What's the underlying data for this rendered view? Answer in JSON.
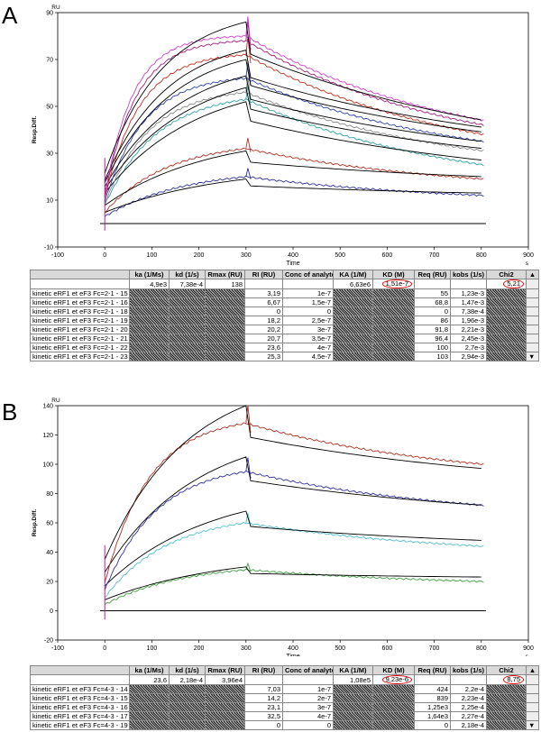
{
  "panels": [
    {
      "letter": "A",
      "chart_data": {
        "type": "line",
        "xlabel": "Time",
        "x_unit": "s",
        "ylabel": "Resp.Diff.",
        "y_unit": "RU",
        "xlim": [
          -100,
          900
        ],
        "ylim": [
          -10,
          90
        ],
        "xticks": [
          -100,
          0,
          100,
          200,
          300,
          400,
          500,
          600,
          700,
          800,
          900
        ],
        "yticks": [
          -10,
          10,
          30,
          50,
          70,
          90
        ],
        "grid": false,
        "series": [
          {
            "color": "#2e2e9e",
            "peak": 20,
            "end": 12,
            "fit_peak": 19,
            "fit_end": 13
          },
          {
            "color": "#b03020",
            "peak": 32,
            "end": 19,
            "fit_peak": 31,
            "fit_end": 20
          },
          {
            "color": "#30a0a0",
            "peak": 53,
            "end": 25,
            "fit_peak": 52,
            "fit_end": 27
          },
          {
            "color": "#888888",
            "peak": 56,
            "end": 31,
            "fit_peak": 58,
            "fit_end": 32
          },
          {
            "color": "#3040b0",
            "peak": 62,
            "end": 35,
            "fit_peak": 63,
            "fit_end": 35
          },
          {
            "color": "#c03020",
            "peak": 72,
            "end": 38,
            "fit_peak": 70,
            "fit_end": 39
          },
          {
            "color": "#a02080",
            "peak": 78,
            "end": 42,
            "fit_peak": 74,
            "fit_end": 41
          },
          {
            "color": "#d040d0",
            "peak": 80,
            "end": 44,
            "fit_peak": 86,
            "fit_end": 44
          }
        ]
      },
      "table": {
        "headers": [
          "",
          "ka (1/Ms)",
          "kd (1/s)",
          "Rmax (RU)",
          "RI (RU)",
          "Conc of analyte",
          "KA (1/M)",
          "KD (M)",
          "Req (RU)",
          "kobs (1/s)",
          "Chi2"
        ],
        "global": {
          "ka": "4,9e3",
          "kd": "7,38e-4",
          "rmax": "138",
          "ka_m": "6,63e6",
          "kd_m": "1,51e-7",
          "chi2": "5,21"
        },
        "rows": [
          {
            "name": "kinetic  eRF1 et eF3 Fc=2-1 - 15",
            "ri": "3,19",
            "conc": "1e-7",
            "req": "55",
            "kobs": "1,23e-3"
          },
          {
            "name": "kinetic  eRF1 et eF3 Fc=2-1 - 16",
            "ri": "6,67",
            "conc": "1,5e-7",
            "req": "68,8",
            "kobs": "1,47e-3"
          },
          {
            "name": "kinetic  eRF1 et eF3 Fc=2-1 - 18",
            "ri": "0",
            "conc": "0",
            "req": "0",
            "kobs": "7,38e-4"
          },
          {
            "name": "kinetic  eRF1 et eF3 Fc=2-1 - 19",
            "ri": "18,2",
            "conc": "2,5e-7",
            "req": "86",
            "kobs": "1,96e-3"
          },
          {
            "name": "kinetic  eRF1 et eF3 Fc=2-1 - 20",
            "ri": "20,2",
            "conc": "3e-7",
            "req": "91,8",
            "kobs": "2,21e-3"
          },
          {
            "name": "kinetic  eRF1 et eF3 Fc=2-1 - 21",
            "ri": "20,7",
            "conc": "3,5e-7",
            "req": "96,4",
            "kobs": "2,45e-3"
          },
          {
            "name": "kinetic  eRF1 et eF3 Fc=2-1 - 22",
            "ri": "23,6",
            "conc": "4e-7",
            "req": "100",
            "kobs": "2,7e-3"
          },
          {
            "name": "kinetic  eRF1 et eF3 Fc=2-1 - 23",
            "ri": "25,3",
            "conc": "4,5e-7",
            "req": "103",
            "kobs": "2,94e-3"
          }
        ]
      }
    },
    {
      "letter": "B",
      "chart_data": {
        "type": "line",
        "xlabel": "Time",
        "x_unit": "s",
        "ylabel": "Resp.Diff.",
        "y_unit": "RU",
        "xlim": [
          -100,
          900
        ],
        "ylim": [
          -20,
          140
        ],
        "xticks": [
          -100,
          0,
          100,
          200,
          300,
          400,
          500,
          600,
          700,
          800,
          900
        ],
        "yticks": [
          -20,
          0,
          20,
          40,
          60,
          80,
          100,
          120,
          140
        ],
        "grid": false,
        "series": [
          {
            "color": "#40a040",
            "peak": 28,
            "end": 20,
            "fit_peak": 30,
            "fit_end": 23
          },
          {
            "color": "#50c0d0",
            "peak": 60,
            "end": 44,
            "fit_peak": 68,
            "fit_end": 48
          },
          {
            "color": "#3030a0",
            "peak": 95,
            "end": 72,
            "fit_peak": 105,
            "fit_end": 72
          },
          {
            "color": "#b03020",
            "peak": 128,
            "end": 100,
            "fit_peak": 140,
            "fit_end": 97
          }
        ]
      },
      "table": {
        "headers": [
          "",
          "ka (1/Ms)",
          "kd (1/s)",
          "Rmax  (RU)",
          "RI (RU)",
          "Conc of analyte",
          "KA (1/M)",
          "KD (M)",
          "Req  (RU)",
          "kobs (1/s)",
          "Chi2"
        ],
        "global": {
          "ka": "23,6",
          "kd": "2,18e-4",
          "rmax": "3,96e4",
          "ka_m": "1,08e5",
          "kd_m": "9,23e-6",
          "chi2": "8,75"
        },
        "rows": [
          {
            "name": "kinetic  eRF1 et eF3 Fc=4-3 - 14",
            "ri": "7,03",
            "conc": "1e-7",
            "req": "424",
            "kobs": "2,2e-4"
          },
          {
            "name": "kinetic  eRF1 et eF3 Fc=4-3 - 15",
            "ri": "14,2",
            "conc": "2e-7",
            "req": "839",
            "kobs": "2,23e-4"
          },
          {
            "name": "kinetic  eRF1 et eF3 Fc=4-3 - 16",
            "ri": "23,1",
            "conc": "3e-7",
            "req": "1,25e3",
            "kobs": "2,25e-4"
          },
          {
            "name": "kinetic  eRF1 et eF3 Fc=4-3 - 17",
            "ri": "32,5",
            "conc": "4e-7",
            "req": "1,64e3",
            "kobs": "2,27e-4"
          },
          {
            "name": "kinetic  eRF1 et eF3 Fc=4-3 - 19",
            "ri": "0",
            "conc": "0",
            "req": "0",
            "kobs": "2,18e-4"
          }
        ]
      }
    }
  ]
}
